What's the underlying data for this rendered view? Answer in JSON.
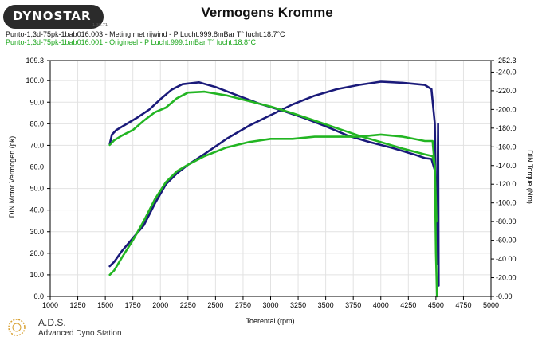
{
  "header": {
    "logo_text": "DYNOSTAR",
    "logo_sub": "1.35.71",
    "title": "Vermogens Kromme",
    "run1": "Punto-1,3d-75pk-1bab016.003 - Meting met rijwind  - P Lucht:999.8mBar T° lucht:18.7°C",
    "run2": "Punto-1,3d-75pk-1bab016.001 - Origineel  - P Lucht:999.1mBar T° lucht:18.8°C"
  },
  "footer": {
    "title": "A.D.S.",
    "subtitle": "Advanced Dyno Station"
  },
  "colors": {
    "run1": "#1a1a7a",
    "run2": "#22b522",
    "axis": "#000000"
  },
  "chart_data": {
    "type": "line",
    "title": "Vermogens Kromme",
    "xlabel": "Toerental (rpm)",
    "ylabel_left": "DIN Motor Vermogen (pk)",
    "ylabel_right": "DIN Torque (Nm)",
    "xlim": [
      1000,
      5000
    ],
    "ylim_left": [
      0,
      109.3
    ],
    "ylim_right": [
      0,
      252.3
    ],
    "x_ticks": [
      "1000",
      "1250",
      "1500",
      "1750",
      "2000",
      "2250",
      "2500",
      "2750",
      "3000",
      "3250",
      "3500",
      "3750",
      "4000",
      "4250",
      "4500",
      "4750",
      "5000"
    ],
    "y_left_ticks": [
      "0.0",
      "10.0",
      "20.0",
      "30.0",
      "40.0",
      "50.0",
      "60.0",
      "70.0",
      "80.0",
      "90.0",
      "100.0",
      "109.3"
    ],
    "y_right_ticks": [
      "0.00",
      "20.00",
      "40.00",
      "60.00",
      "80.00",
      "100.0",
      "120.0",
      "140.0",
      "160.0",
      "180.0",
      "200.0",
      "220.0",
      "240.0",
      "252.3"
    ],
    "grid": true,
    "series": [
      {
        "name": "Punto-1,3d-75pk-1bab016.003",
        "kind": "power",
        "axis": "left",
        "color": "#1a1a7a",
        "points": [
          [
            1540,
            14
          ],
          [
            1580,
            16
          ],
          [
            1650,
            21
          ],
          [
            1750,
            27
          ],
          [
            1850,
            33
          ],
          [
            1950,
            43
          ],
          [
            2050,
            52
          ],
          [
            2150,
            57
          ],
          [
            2250,
            61
          ],
          [
            2400,
            66
          ],
          [
            2600,
            73
          ],
          [
            2800,
            79
          ],
          [
            3000,
            84
          ],
          [
            3200,
            89
          ],
          [
            3400,
            93
          ],
          [
            3600,
            96
          ],
          [
            3800,
            98
          ],
          [
            4000,
            99.5
          ],
          [
            4200,
            99
          ],
          [
            4400,
            98
          ],
          [
            4460,
            96
          ],
          [
            4490,
            80
          ],
          [
            4500,
            45
          ],
          [
            4510,
            15
          ],
          [
            4520,
            80
          ],
          [
            4525,
            5
          ]
        ]
      },
      {
        "name": "Punto-1,3d-75pk-1bab016.003",
        "kind": "torque",
        "axis": "right",
        "color": "#1a1a7a",
        "points": [
          [
            1540,
            163
          ],
          [
            1560,
            173
          ],
          [
            1600,
            178
          ],
          [
            1700,
            185
          ],
          [
            1800,
            192
          ],
          [
            1900,
            200
          ],
          [
            2000,
            211
          ],
          [
            2100,
            221
          ],
          [
            2200,
            227
          ],
          [
            2350,
            229
          ],
          [
            2500,
            224
          ],
          [
            2700,
            215
          ],
          [
            2900,
            206
          ],
          [
            3100,
            199
          ],
          [
            3300,
            191
          ],
          [
            3500,
            182
          ],
          [
            3700,
            172
          ],
          [
            3900,
            165
          ],
          [
            4100,
            159
          ],
          [
            4300,
            152
          ],
          [
            4400,
            148
          ],
          [
            4460,
            147
          ],
          [
            4490,
            135
          ],
          [
            4510,
            95
          ],
          [
            4520,
            62
          ]
        ]
      },
      {
        "name": "Punto-1,3d-75pk-1bab016.001",
        "kind": "power",
        "axis": "left",
        "color": "#22b522",
        "points": [
          [
            1540,
            10
          ],
          [
            1580,
            12
          ],
          [
            1650,
            18
          ],
          [
            1750,
            26
          ],
          [
            1850,
            35
          ],
          [
            1950,
            45
          ],
          [
            2050,
            53
          ],
          [
            2150,
            58
          ],
          [
            2250,
            61
          ],
          [
            2400,
            65
          ],
          [
            2600,
            69
          ],
          [
            2800,
            71.5
          ],
          [
            3000,
            73
          ],
          [
            3200,
            73
          ],
          [
            3400,
            74
          ],
          [
            3600,
            74
          ],
          [
            3800,
            74
          ],
          [
            4000,
            75
          ],
          [
            4200,
            74
          ],
          [
            4400,
            72
          ],
          [
            4470,
            72
          ],
          [
            4490,
            60
          ],
          [
            4500,
            20
          ],
          [
            4505,
            10
          ],
          [
            4510,
            0
          ]
        ]
      },
      {
        "name": "Punto-1,3d-75pk-1bab016.001",
        "kind": "torque",
        "axis": "right",
        "color": "#22b522",
        "points": [
          [
            1540,
            162
          ],
          [
            1580,
            167
          ],
          [
            1650,
            172
          ],
          [
            1750,
            178
          ],
          [
            1850,
            188
          ],
          [
            1950,
            197
          ],
          [
            2050,
            202
          ],
          [
            2150,
            212
          ],
          [
            2250,
            218
          ],
          [
            2400,
            219
          ],
          [
            2600,
            215
          ],
          [
            2800,
            209
          ],
          [
            3000,
            203
          ],
          [
            3200,
            196
          ],
          [
            3400,
            188
          ],
          [
            3600,
            180
          ],
          [
            3800,
            172
          ],
          [
            4000,
            165
          ],
          [
            4200,
            158
          ],
          [
            4400,
            152
          ],
          [
            4470,
            150
          ],
          [
            4490,
            140
          ],
          [
            4500,
            100
          ],
          [
            4505,
            80
          ]
        ]
      }
    ]
  }
}
